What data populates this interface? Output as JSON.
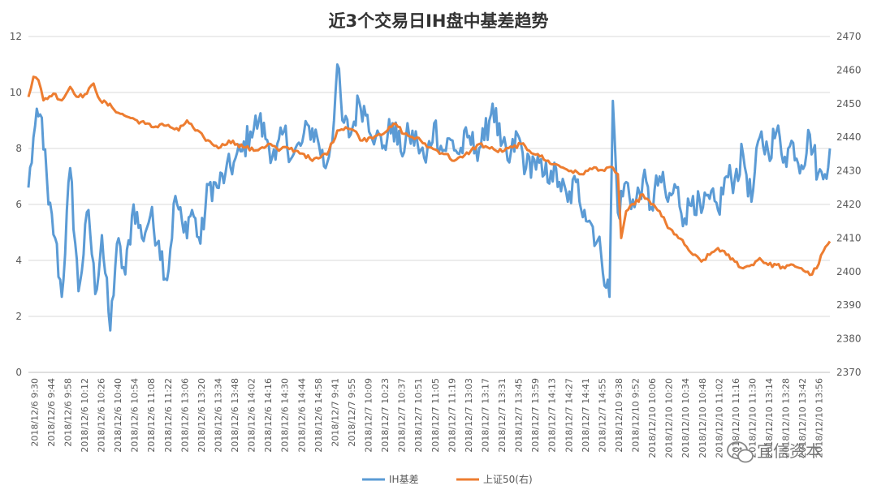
{
  "chart_data": {
    "type": "line",
    "title": "近3个交易日IH盘中基差趋势",
    "y_left": {
      "min": 0,
      "max": 12,
      "ticks": [
        0,
        2,
        4,
        6,
        8,
        10,
        12
      ]
    },
    "y_right": {
      "min": 2370,
      "max": 2470,
      "ticks": [
        2370,
        2380,
        2390,
        2400,
        2410,
        2420,
        2430,
        2440,
        2450,
        2460,
        2470
      ]
    },
    "grid": "horizontal",
    "legend_position": "bottom",
    "x_tick_labels": [
      "2018/12/6 9:30",
      "2018/12/6 9:44",
      "2018/12/6 9:58",
      "2018/12/6 10:12",
      "2018/12/6 10:26",
      "2018/12/6 10:40",
      "2018/12/6 10:54",
      "2018/12/6 11:08",
      "2018/12/6 11:22",
      "2018/12/6 13:06",
      "2018/12/6 13:20",
      "2018/12/6 13:34",
      "2018/12/6 13:48",
      "2018/12/6 14:02",
      "2018/12/6 14:16",
      "2018/12/6 14:30",
      "2018/12/6 14:44",
      "2018/12/6 14:58",
      "2018/12/7 9:41",
      "2018/12/7 9:55",
      "2018/12/7 10:09",
      "2018/12/7 10:23",
      "2018/12/7 10:37",
      "2018/12/7 10:51",
      "2018/12/7 11:05",
      "2018/12/7 11:19",
      "2018/12/7 13:03",
      "2018/12/7 13:17",
      "2018/12/7 13:31",
      "2018/12/7 13:45",
      "2018/12/7 13:59",
      "2018/12/7 14:13",
      "2018/12/7 14:27",
      "2018/12/7 14:41",
      "2018/12/7 14:55",
      "2018/12/10 9:38",
      "2018/12/10 9:52",
      "2018/12/10 10:06",
      "2018/12/10 10:20",
      "2018/12/10 10:34",
      "2018/12/10 10:48",
      "2018/12/10 11:02",
      "2018/12/10 11:16",
      "2018/12/10 11:30",
      "2018/12/10 13:14",
      "2018/12/10 13:28",
      "2018/12/10 13:42",
      "2018/12/10 13:56"
    ],
    "series": [
      {
        "name": "IH基差",
        "axis": "left",
        "color": "#5B9BD5",
        "keypoints": [
          [
            0,
            6.6
          ],
          [
            0.4,
            8.8
          ],
          [
            0.8,
            9.1
          ],
          [
            1.2,
            6.0
          ],
          [
            1.6,
            4.8
          ],
          [
            2.0,
            2.7
          ],
          [
            2.5,
            7.3
          ],
          [
            3.0,
            2.9
          ],
          [
            3.6,
            5.8
          ],
          [
            4.0,
            2.8
          ],
          [
            4.4,
            4.9
          ],
          [
            4.9,
            1.5
          ],
          [
            5.3,
            4.6
          ],
          [
            5.8,
            3.5
          ],
          [
            6.3,
            6.0
          ],
          [
            6.8,
            4.8
          ],
          [
            7.3,
            5.6
          ],
          [
            7.8,
            4.7
          ],
          [
            8.3,
            3.3
          ],
          [
            8.8,
            6.3
          ],
          [
            9.3,
            5.0
          ],
          [
            9.8,
            5.8
          ],
          [
            10.3,
            4.6
          ],
          [
            10.8,
            6.7
          ],
          [
            11.3,
            6.6
          ],
          [
            11.8,
            7.1
          ],
          [
            12.3,
            7.5
          ],
          [
            12.8,
            7.9
          ],
          [
            13.3,
            8.6
          ],
          [
            13.8,
            9.0
          ],
          [
            14.3,
            8.3
          ],
          [
            14.8,
            7.6
          ],
          [
            15.3,
            8.6
          ],
          [
            15.8,
            7.7
          ],
          [
            16.3,
            8.1
          ],
          [
            16.8,
            8.8
          ],
          [
            17.3,
            8.4
          ],
          [
            17.8,
            7.3
          ],
          [
            18.3,
            9.0
          ],
          [
            18.5,
            11.0
          ],
          [
            18.8,
            9.0
          ],
          [
            19.3,
            8.5
          ],
          [
            19.8,
            9.7
          ],
          [
            20.3,
            9.2
          ],
          [
            20.8,
            8.4
          ],
          [
            21.3,
            8.1
          ],
          [
            21.8,
            8.9
          ],
          [
            22.3,
            7.9
          ],
          [
            22.8,
            8.5
          ],
          [
            23.3,
            8.2
          ],
          [
            23.8,
            7.5
          ],
          [
            24.3,
            8.9
          ],
          [
            24.8,
            7.9
          ],
          [
            25.3,
            8.3
          ],
          [
            25.8,
            7.8
          ],
          [
            26.3,
            8.4
          ],
          [
            26.8,
            8.0
          ],
          [
            27.3,
            8.3
          ],
          [
            27.8,
            9.6
          ],
          [
            28.3,
            8.1
          ],
          [
            28.8,
            7.5
          ],
          [
            29.3,
            8.5
          ],
          [
            29.8,
            7.3
          ],
          [
            30.3,
            7.6
          ],
          [
            30.8,
            7.0
          ],
          [
            31.3,
            7.2
          ],
          [
            31.8,
            6.8
          ],
          [
            32.3,
            6.1
          ],
          [
            32.8,
            6.8
          ],
          [
            33.3,
            5.8
          ],
          [
            33.8,
            5.2
          ],
          [
            34.3,
            4.2
          ],
          [
            34.8,
            2.7
          ],
          [
            35.0,
            9.7
          ],
          [
            35.3,
            5.7
          ],
          [
            35.8,
            6.8
          ],
          [
            36.3,
            5.9
          ],
          [
            36.8,
            6.9
          ],
          [
            37.3,
            5.9
          ],
          [
            37.8,
            7.0
          ],
          [
            38.3,
            6.1
          ],
          [
            38.8,
            6.6
          ],
          [
            39.3,
            5.5
          ],
          [
            39.8,
            6.3
          ],
          [
            40.3,
            5.7
          ],
          [
            40.8,
            6.2
          ],
          [
            41.3,
            5.8
          ],
          [
            41.8,
            7.0
          ],
          [
            42.3,
            6.9
          ],
          [
            42.8,
            7.8
          ],
          [
            43.3,
            6.1
          ],
          [
            43.8,
            8.4
          ],
          [
            44.3,
            7.9
          ],
          [
            44.8,
            8.6
          ],
          [
            45.3,
            7.7
          ],
          [
            45.8,
            8.2
          ],
          [
            46.3,
            7.4
          ],
          [
            46.8,
            8.5
          ],
          [
            47.3,
            7.1
          ],
          [
            47.6,
            6.9
          ],
          [
            48.0,
            8.0
          ]
        ]
      },
      {
        "name": "上证50(右)",
        "axis": "right",
        "color": "#ED7D31",
        "keypoints": [
          [
            0,
            2452
          ],
          [
            0.3,
            2458
          ],
          [
            0.6,
            2457
          ],
          [
            0.9,
            2451
          ],
          [
            1.5,
            2453
          ],
          [
            2.0,
            2451
          ],
          [
            2.5,
            2455
          ],
          [
            3.0,
            2452
          ],
          [
            3.5,
            2453
          ],
          [
            3.9,
            2456
          ],
          [
            4.3,
            2451
          ],
          [
            5.0,
            2449
          ],
          [
            5.5,
            2447
          ],
          [
            6.0,
            2446
          ],
          [
            6.5,
            2445
          ],
          [
            7.0,
            2444
          ],
          [
            7.5,
            2443
          ],
          [
            8.0,
            2444
          ],
          [
            8.5,
            2443
          ],
          [
            9.0,
            2442
          ],
          [
            9.5,
            2445
          ],
          [
            10.0,
            2442
          ],
          [
            10.5,
            2440
          ],
          [
            11.0,
            2438
          ],
          [
            11.5,
            2437
          ],
          [
            12.0,
            2439
          ],
          [
            12.5,
            2438
          ],
          [
            13.0,
            2437
          ],
          [
            13.5,
            2436
          ],
          [
            14.0,
            2437
          ],
          [
            14.5,
            2438
          ],
          [
            15.0,
            2436
          ],
          [
            15.5,
            2437
          ],
          [
            16.0,
            2436
          ],
          [
            16.5,
            2435
          ],
          [
            17.0,
            2433
          ],
          [
            17.5,
            2434
          ],
          [
            18.0,
            2436
          ],
          [
            18.5,
            2442
          ],
          [
            19.0,
            2443
          ],
          [
            19.5,
            2442
          ],
          [
            20.0,
            2439
          ],
          [
            20.5,
            2440
          ],
          [
            21.0,
            2441
          ],
          [
            21.5,
            2442
          ],
          [
            22.0,
            2444
          ],
          [
            22.5,
            2441
          ],
          [
            23.0,
            2440
          ],
          [
            23.5,
            2439
          ],
          [
            24.0,
            2437
          ],
          [
            24.5,
            2436
          ],
          [
            25.0,
            2435
          ],
          [
            25.5,
            2433
          ],
          [
            26.0,
            2434
          ],
          [
            26.5,
            2436
          ],
          [
            27.0,
            2438
          ],
          [
            27.5,
            2437
          ],
          [
            28.0,
            2436
          ],
          [
            28.5,
            2436
          ],
          [
            29.0,
            2437
          ],
          [
            29.5,
            2438
          ],
          [
            30.0,
            2436
          ],
          [
            30.5,
            2435
          ],
          [
            31.0,
            2433
          ],
          [
            31.5,
            2432
          ],
          [
            32.0,
            2431
          ],
          [
            32.5,
            2430
          ],
          [
            33.0,
            2429
          ],
          [
            33.5,
            2430
          ],
          [
            34.0,
            2431
          ],
          [
            34.5,
            2430
          ],
          [
            35.0,
            2431
          ],
          [
            35.3,
            2429
          ],
          [
            35.5,
            2410
          ],
          [
            35.8,
            2418
          ],
          [
            36.3,
            2420
          ],
          [
            36.8,
            2423
          ],
          [
            37.3,
            2420
          ],
          [
            37.8,
            2418
          ],
          [
            38.3,
            2413
          ],
          [
            38.8,
            2411
          ],
          [
            39.3,
            2408
          ],
          [
            39.8,
            2405
          ],
          [
            40.3,
            2403
          ],
          [
            40.8,
            2405
          ],
          [
            41.3,
            2407
          ],
          [
            41.8,
            2405
          ],
          [
            42.3,
            2403
          ],
          [
            42.8,
            2401
          ],
          [
            43.3,
            2402
          ],
          [
            43.8,
            2404
          ],
          [
            44.3,
            2402
          ],
          [
            44.8,
            2402
          ],
          [
            45.3,
            2401
          ],
          [
            45.8,
            2402
          ],
          [
            46.3,
            2401
          ],
          [
            46.8,
            2399
          ],
          [
            47.2,
            2401
          ],
          [
            47.6,
            2406
          ],
          [
            48.0,
            2409
          ]
        ]
      }
    ]
  },
  "watermark": {
    "text": "宜信资本",
    "icon": "wechat-icon"
  }
}
